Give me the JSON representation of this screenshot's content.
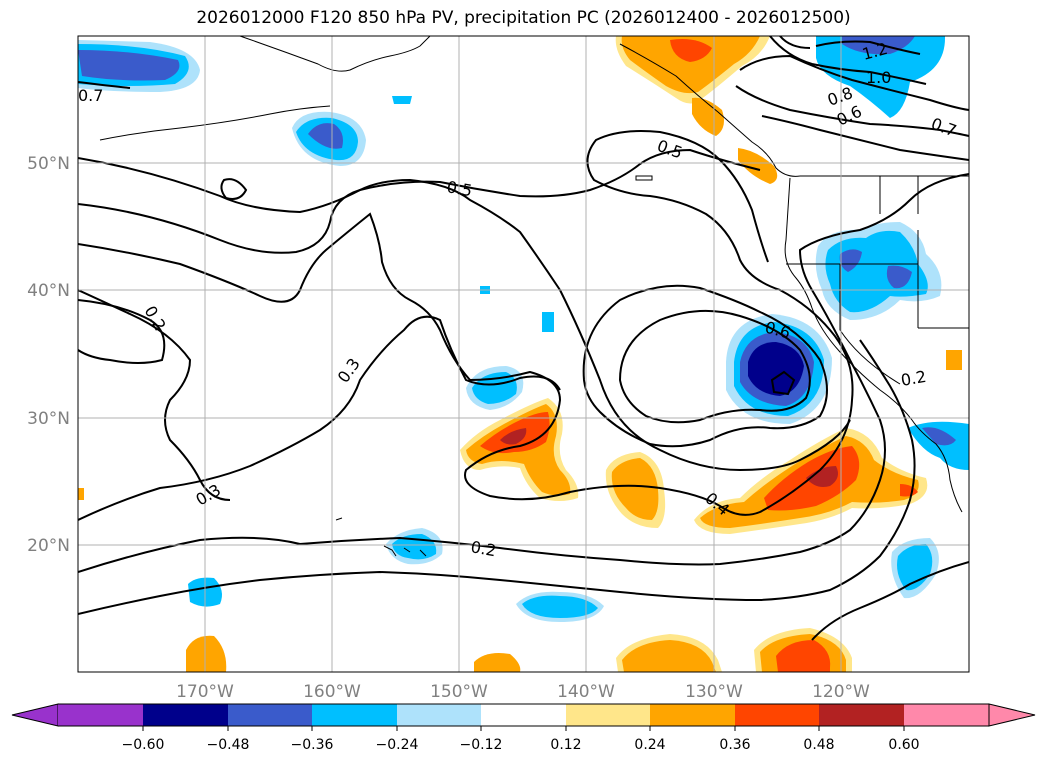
{
  "title": "2026012000 F120 850 hPa PV, precipitation PC (2026012400 - 2026012500)",
  "lat_labels": [
    "50°N",
    "40°N",
    "30°N",
    "20°N"
  ],
  "lon_labels": [
    "170°W",
    "160°W",
    "150°W",
    "140°W",
    "130°W",
    "120°W"
  ],
  "contour_labels": [
    "0.7",
    "1.2",
    "1.0",
    "0.8",
    "0.6",
    "0.7",
    "0.5",
    "0.5",
    "0.2",
    "0.6",
    "0.3",
    "0.3",
    "0.2",
    "0.4",
    "0.2"
  ],
  "colorbar": {
    "ticks": [
      "−0.60",
      "−0.48",
      "−0.36",
      "−0.24",
      "−0.12",
      "0.12",
      "0.24",
      "0.36",
      "0.48",
      "0.60"
    ],
    "colors": {
      "lt_min": "#9932cc",
      "c1": "#00008b",
      "c2": "#3a5bcb",
      "c3": "#00bfff",
      "c4": "#aee2fb",
      "c5": "#ffffff",
      "c6": "#ffe68a",
      "c7": "#ffa500",
      "c8": "#ff4500",
      "c9": "#b22222",
      "gt_max": "#ff88aa"
    }
  }
}
